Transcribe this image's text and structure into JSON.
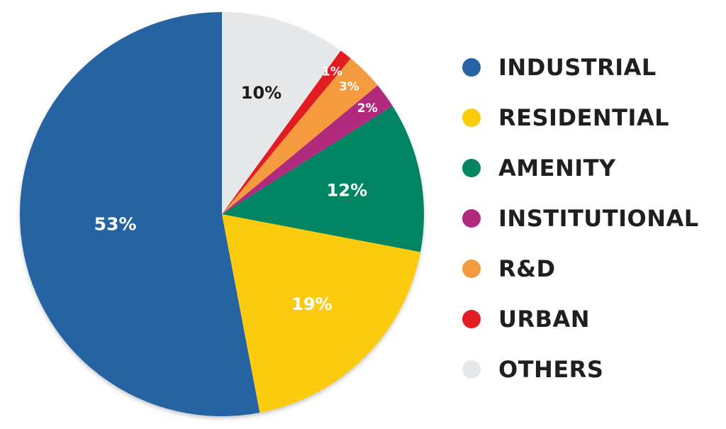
{
  "chart_data": {
    "type": "pie",
    "title": "",
    "legend_position": "right",
    "start_angle_deg": 0,
    "direction": "counterclockwise",
    "slices": [
      {
        "name": "INDUSTRIAL",
        "value": 53,
        "label": "53%",
        "color": "#2663a3",
        "label_color": "#ffffff"
      },
      {
        "name": "RESIDENTIAL",
        "value": 19,
        "label": "19%",
        "color": "#fccb0a",
        "label_color": "#ffffff"
      },
      {
        "name": "AMENITY",
        "value": 12,
        "label": "12%",
        "color": "#068462",
        "label_color": "#ffffff"
      },
      {
        "name": "INSTITUTIONAL",
        "value": 2,
        "label": "2%",
        "color": "#b22a7e",
        "label_color": "#ffffff"
      },
      {
        "name": "R&D",
        "value": 3,
        "label": "3%",
        "color": "#f49b40",
        "label_color": "#ffffff"
      },
      {
        "name": "URBAN",
        "value": 1,
        "label": "1%",
        "color": "#e31d24",
        "label_color": "#ffffff"
      },
      {
        "name": "OTHERS",
        "value": 10,
        "label": "10%",
        "color": "#e6e7e9",
        "label_color": "#1a1a1a"
      }
    ]
  }
}
